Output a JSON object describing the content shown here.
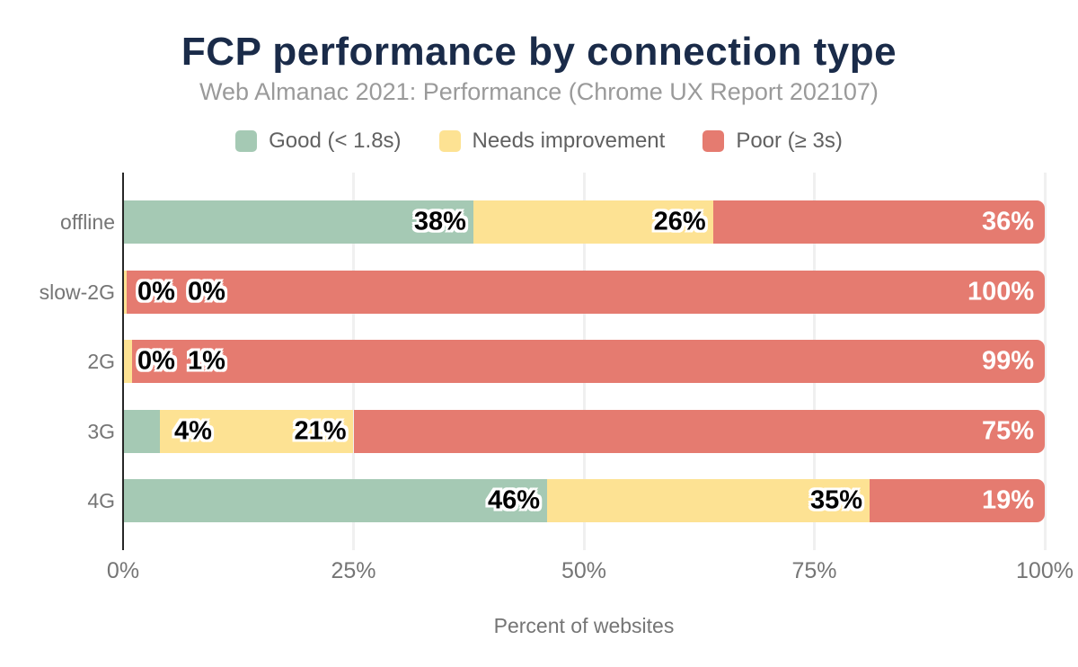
{
  "title": "FCP performance by connection type",
  "subtitle": "Web Almanac 2021: Performance (Chrome UX Report 202107)",
  "legend": {
    "items": [
      {
        "label": "Good (< 1.8s)"
      },
      {
        "label": "Needs improvement"
      },
      {
        "label": "Poor (≥ 3s)"
      }
    ]
  },
  "xaxis": {
    "ticks": [
      "0%",
      "25%",
      "50%",
      "75%",
      "100%"
    ],
    "tick_values": [
      0,
      25,
      50,
      75,
      100
    ],
    "label": "Percent of websites"
  },
  "chart_data": {
    "type": "bar",
    "orientation": "horizontal",
    "stacked": true,
    "title": "FCP performance by connection type",
    "subtitle": "Web Almanac 2021: Performance (Chrome UX Report 202107)",
    "xlabel": "Percent of websites",
    "xlim": [
      0,
      100
    ],
    "grid": "vertical",
    "legend_position": "top",
    "categories": [
      "offline",
      "slow-2G",
      "2G",
      "3G",
      "4G"
    ],
    "series": [
      {
        "name": "Good (< 1.8s)",
        "key": "good",
        "color": "#a5c9b4",
        "values": [
          38,
          0,
          0,
          4,
          46
        ]
      },
      {
        "name": "Needs improvement",
        "key": "needs-improvement",
        "color": "#fde293",
        "values": [
          26,
          0,
          1,
          21,
          35
        ]
      },
      {
        "name": "Poor (≥ 3s)",
        "key": "poor",
        "color": "#e57b70",
        "values": [
          36,
          100,
          99,
          75,
          19
        ]
      }
    ],
    "draw_pct": [
      [
        38,
        26,
        36
      ],
      [
        0,
        0.4,
        99.6
      ],
      [
        0,
        1,
        99
      ],
      [
        4,
        21,
        75
      ],
      [
        46,
        35,
        19
      ]
    ]
  },
  "colors": {
    "title": "#1a2b49",
    "subtitle": "#9a9a9a",
    "legend_text": "#616161",
    "axis_text": "#757575",
    "axis_line": "#262626",
    "gridline": "#f0f0f0",
    "label_black": "#000000",
    "label_white": "#ffffff"
  }
}
